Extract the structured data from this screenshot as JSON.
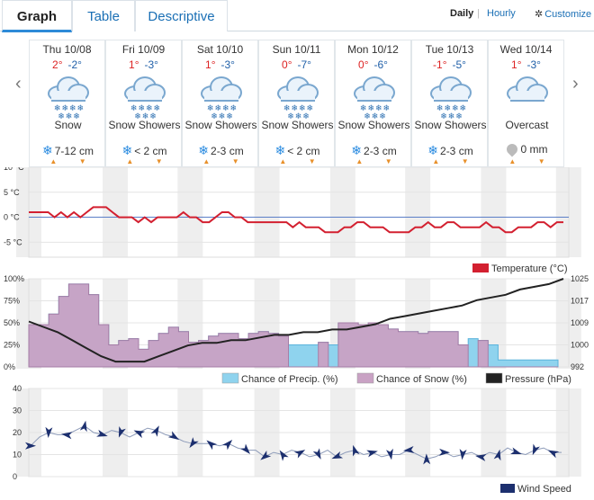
{
  "tabs": [
    {
      "label": "Graph",
      "active": true
    },
    {
      "label": "Table",
      "active": false
    },
    {
      "label": "Descriptive",
      "active": false
    }
  ],
  "view": {
    "daily": "Daily",
    "separator": "|",
    "hourly": "Hourly",
    "customize": "Customize"
  },
  "nav": {
    "prev": "‹",
    "next": "›"
  },
  "days": [
    {
      "name": "Thu 10/08",
      "hi": "2°",
      "lo": "-2°",
      "condition": "Snow",
      "precip": "7-12 cm",
      "icon": "snow-cloud-icon"
    },
    {
      "name": "Fri 10/09",
      "hi": "1°",
      "lo": "-3°",
      "condition": "Snow Showers",
      "precip": "< 2 cm",
      "icon": "snow-cloud-icon"
    },
    {
      "name": "Sat 10/10",
      "hi": "1°",
      "lo": "-3°",
      "condition": "Snow Showers",
      "precip": "2-3 cm",
      "icon": "snow-cloud-icon"
    },
    {
      "name": "Sun 10/11",
      "hi": "0°",
      "lo": "-7°",
      "condition": "Snow Showers",
      "precip": "< 2 cm",
      "icon": "snow-cloud-icon"
    },
    {
      "name": "Mon 10/12",
      "hi": "0°",
      "lo": "-6°",
      "condition": "Snow Showers",
      "precip": "2-3 cm",
      "icon": "snow-cloud-icon"
    },
    {
      "name": "Tue 10/13",
      "hi": "-1°",
      "lo": "-5°",
      "condition": "Snow Showers",
      "precip": "2-3 cm",
      "icon": "snow-cloud-icon"
    },
    {
      "name": "Wed 10/14",
      "hi": "1°",
      "lo": "-3°",
      "condition": "Overcast",
      "precip": "0 mm",
      "icon": "overcast-cloud-icon"
    }
  ],
  "colors": {
    "temperature": "#d32030",
    "precip": "#8fd3ee",
    "snow": "#c9a2c4",
    "pressure": "#222222",
    "wind": "#1c2f6e",
    "zero_line": "#5b7fc7",
    "night_band": "#eeeeee"
  },
  "chart_data": [
    {
      "type": "line",
      "title": "",
      "xlabel": "",
      "ylabel": "",
      "ylim": [
        -8,
        10
      ],
      "yticks": [
        "10 °C",
        "5 °C",
        "0 °C",
        "-5 °C"
      ],
      "series": [
        {
          "name": "Temperature (°C)",
          "values": [
            1,
            1,
            1,
            1,
            0,
            1,
            0,
            1,
            0,
            1,
            2,
            2,
            2,
            1,
            0,
            0,
            0,
            -1,
            0,
            -1,
            0,
            0,
            0,
            0,
            1,
            0,
            0,
            -1,
            -1,
            0,
            1,
            1,
            0,
            0,
            -1,
            -1,
            -1,
            -1,
            -1,
            -1,
            -1,
            -2,
            -1,
            -2,
            -2,
            -2,
            -3,
            -3,
            -3,
            -2,
            -2,
            -1,
            -1,
            -2,
            -2,
            -2,
            -3,
            -3,
            -3,
            -3,
            -2,
            -2,
            -1,
            -2,
            -2,
            -1,
            -1,
            -2,
            -2,
            -2,
            -2,
            -1,
            -2,
            -2,
            -3,
            -3,
            -2,
            -2,
            -2,
            -1,
            -1,
            -2,
            -1,
            -1
          ]
        }
      ],
      "grid": true
    },
    {
      "type": "area",
      "ylim": [
        0,
        100
      ],
      "yticks_left": [
        "100%",
        "75%",
        "50%",
        "25%",
        "0%"
      ],
      "yticks_right": [
        "1025",
        "1017",
        "1009",
        "1000",
        "992"
      ],
      "series": [
        {
          "name": "Chance of Precip. (%)",
          "values": [
            48,
            48,
            60,
            80,
            94,
            94,
            82,
            48,
            25,
            30,
            32,
            20,
            30,
            38,
            45,
            40,
            28,
            30,
            35,
            38,
            38,
            32,
            38,
            40,
            38,
            35,
            25,
            25,
            25,
            28,
            25,
            50,
            50,
            48,
            50,
            48,
            43,
            40,
            40,
            38,
            40,
            40,
            40,
            25,
            32,
            30,
            25,
            8,
            8,
            8,
            8,
            8,
            8
          ]
        },
        {
          "name": "Chance of Snow (%)",
          "values": [
            48,
            48,
            60,
            80,
            94,
            94,
            82,
            48,
            25,
            30,
            32,
            20,
            30,
            38,
            45,
            40,
            28,
            30,
            35,
            38,
            38,
            32,
            38,
            40,
            38,
            35,
            0,
            0,
            0,
            28,
            0,
            50,
            50,
            48,
            50,
            48,
            43,
            40,
            40,
            38,
            40,
            40,
            40,
            25,
            0,
            30,
            0,
            0,
            0,
            0,
            0,
            0,
            0
          ]
        },
        {
          "name": "Pressure (hPa)",
          "values": [
            1009,
            1007,
            1005,
            1002,
            999,
            996,
            994,
            994,
            994,
            996,
            998,
            1000,
            1001,
            1001,
            1002,
            1002,
            1003,
            1004,
            1004,
            1005,
            1005,
            1006,
            1006,
            1007,
            1008,
            1010,
            1011,
            1012,
            1013,
            1014,
            1015,
            1017,
            1018,
            1019,
            1021,
            1022,
            1023,
            1025
          ]
        }
      ],
      "grid": true
    },
    {
      "type": "line",
      "ylim": [
        0,
        40
      ],
      "yticks": [
        "40",
        "30",
        "20",
        "10",
        "0"
      ],
      "series": [
        {
          "name": "Wind Speed",
          "values": [
            14,
            18,
            20,
            19,
            19,
            21,
            23,
            20,
            19,
            21,
            20,
            18,
            20,
            22,
            21,
            19,
            18,
            16,
            15,
            15,
            15,
            14,
            15,
            13,
            12,
            12,
            9,
            11,
            10,
            12,
            11,
            9,
            10,
            12,
            9,
            11,
            12,
            10,
            11,
            9,
            10,
            10,
            12,
            10,
            8,
            9,
            11,
            9,
            10,
            11,
            9,
            11,
            10,
            13,
            11,
            10,
            12,
            13,
            11,
            11
          ]
        }
      ],
      "grid": true
    }
  ]
}
